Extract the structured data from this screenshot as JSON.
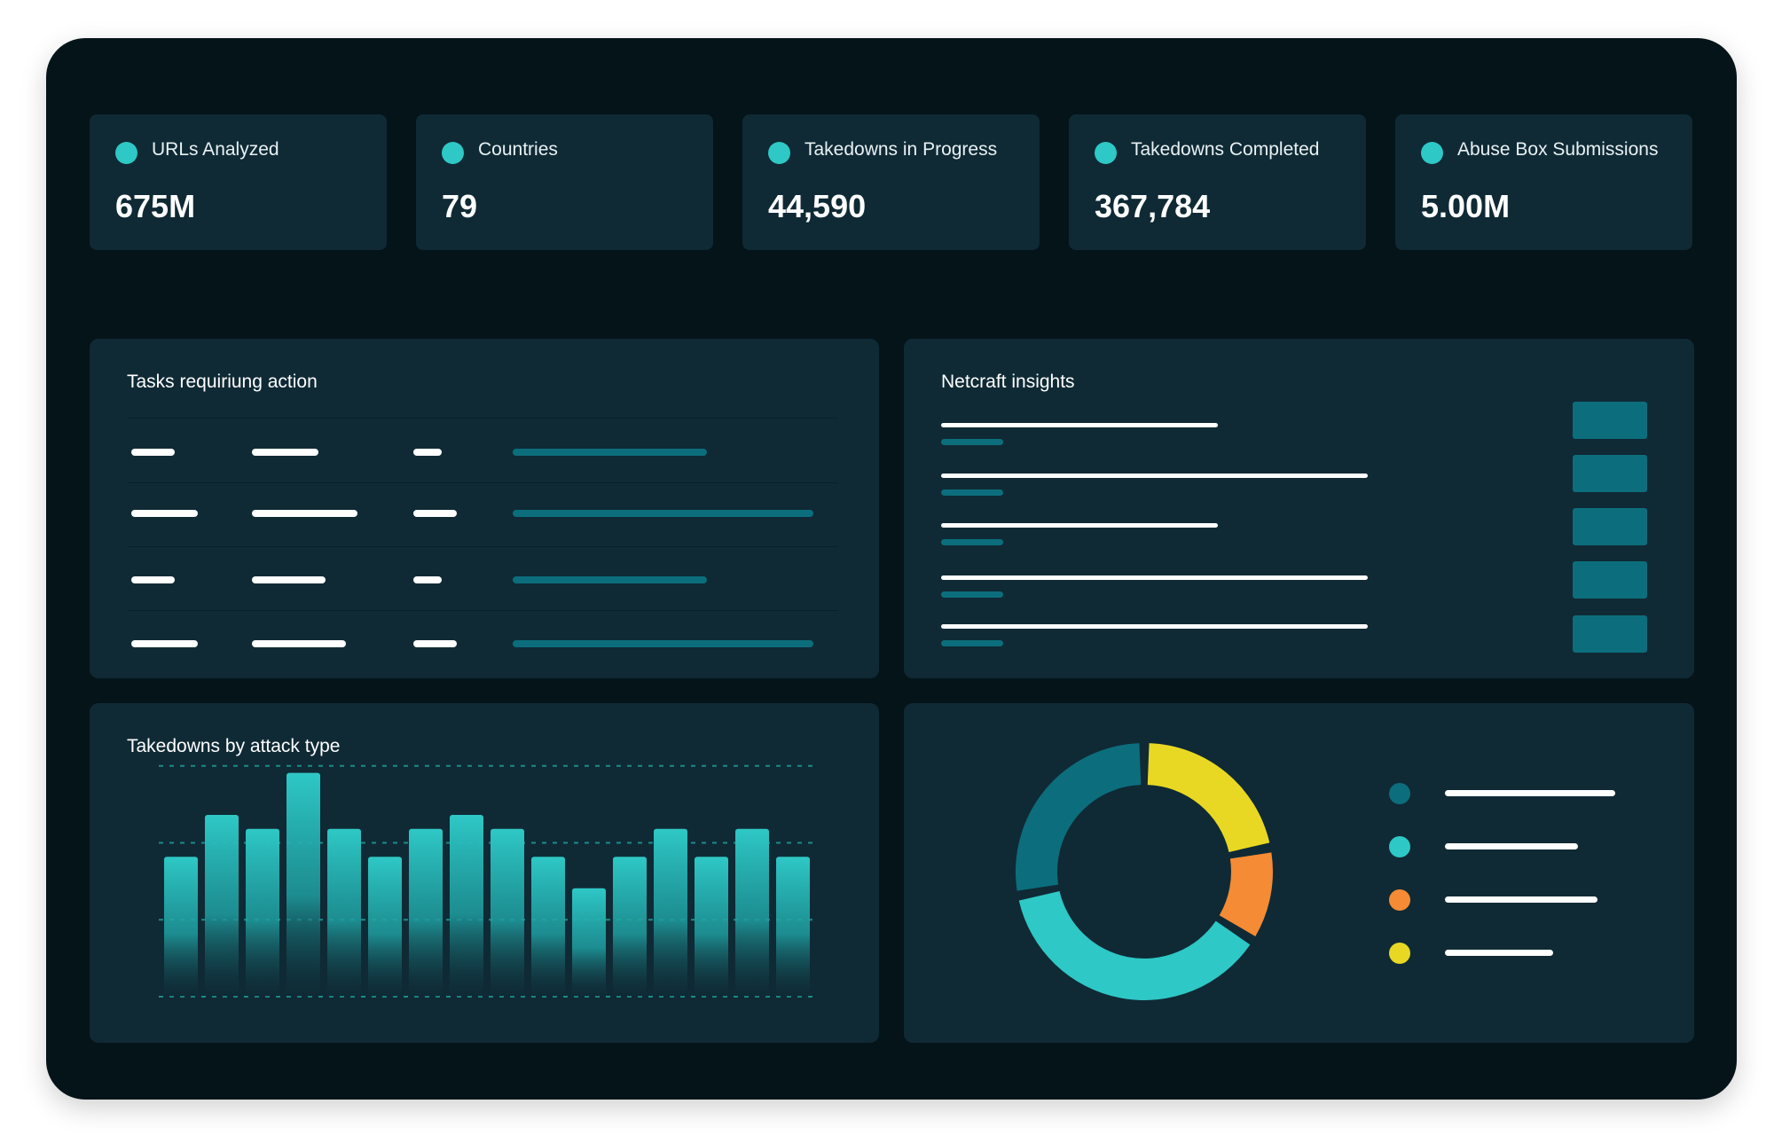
{
  "stats": [
    {
      "label": "URLs Analyzed",
      "value": "675M"
    },
    {
      "label": "Countries",
      "value": "79"
    },
    {
      "label": "Takedowns in Progress",
      "value": "44,590"
    },
    {
      "label": "Takedowns Completed",
      "value": "367,784"
    },
    {
      "label": "Abuse Box Submissions",
      "value": "5.00M"
    }
  ],
  "tasks": {
    "title": "Tasks requiriung action"
  },
  "insights": {
    "title": "Netcraft insights"
  },
  "attack_chart": {
    "title": "Takedowns by attack type"
  },
  "colors": {
    "accent": "#2ec8c6",
    "dark_teal": "#0c6e7d",
    "orange": "#f58b34",
    "yellow": "#e8d823",
    "panel": "#0f2a35",
    "frame": "#051419"
  },
  "chart_data": [
    {
      "type": "bar",
      "title": "Takedowns by attack type",
      "values": [
        4,
        5.2,
        4.8,
        6.4,
        4.8,
        4,
        4.8,
        5.2,
        4.8,
        4,
        3.1,
        4,
        4.8,
        4,
        4.8,
        4
      ],
      "ylim": [
        0,
        7
      ],
      "grid": true,
      "gridline_values": [
        0,
        2.2,
        4.4,
        6.6
      ],
      "color": "#2ec8c6"
    },
    {
      "type": "pie",
      "style": "donut",
      "slices": [
        {
          "value": 22,
          "color": "#e8d823"
        },
        {
          "value": 12,
          "color": "#f58b34"
        },
        {
          "value": 38,
          "color": "#2ec8c6"
        },
        {
          "value": 28,
          "color": "#0c6e7d"
        }
      ],
      "legend_colors": [
        "#0c6e7d",
        "#2ec8c6",
        "#f58b34",
        "#e8d823"
      ],
      "legend_placement": "right"
    }
  ]
}
